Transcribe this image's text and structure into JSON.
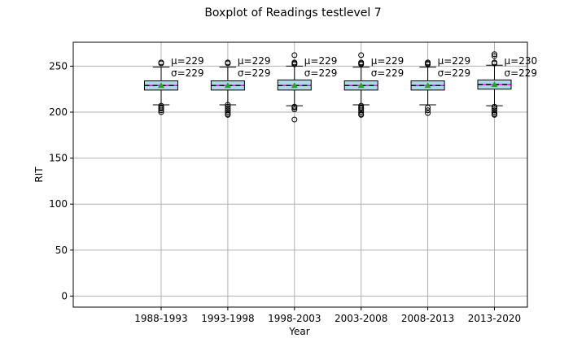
{
  "chart_data": {
    "type": "boxplot",
    "title": "Boxplot of Readings testlevel 7",
    "xlabel": "Year",
    "ylabel": "RIT",
    "ylim": [
      -12,
      276
    ],
    "yticks": [
      0,
      50,
      100,
      150,
      200,
      250
    ],
    "grid": true,
    "categories": [
      "1988-1993",
      "1993-1998",
      "1998-2003",
      "2003-2008",
      "2008-2013",
      "2013-2020"
    ],
    "boxes": [
      {
        "q1": 224,
        "median": 229,
        "q3": 234,
        "whisker_low": 208,
        "whisker_high": 249,
        "mean": 229,
        "outliers": [
          254,
          253,
          207,
          205,
          204,
          202,
          200
        ]
      },
      {
        "q1": 224,
        "median": 229,
        "q3": 234,
        "whisker_low": 208,
        "whisker_high": 249,
        "mean": 229,
        "outliers": [
          254,
          253,
          208,
          206,
          204,
          202,
          200,
          198,
          197
        ]
      },
      {
        "q1": 224,
        "median": 229,
        "q3": 235,
        "whisker_low": 207,
        "whisker_high": 250,
        "mean": 229,
        "outliers": [
          262,
          254,
          253,
          252,
          206,
          205,
          203,
          192
        ]
      },
      {
        "q1": 224,
        "median": 229,
        "q3": 234,
        "whisker_low": 208,
        "whisker_high": 249,
        "mean": 229,
        "outliers": [
          262,
          254,
          253,
          252,
          207,
          205,
          204,
          202,
          200,
          198,
          197
        ]
      },
      {
        "q1": 224,
        "median": 229,
        "q3": 234,
        "whisker_low": 208,
        "whisker_high": 249,
        "mean": 229,
        "outliers": [
          254,
          253,
          252,
          205,
          202,
          199
        ]
      },
      {
        "q1": 225,
        "median": 230,
        "q3": 235,
        "whisker_low": 207,
        "whisker_high": 251,
        "mean": 230,
        "outliers": [
          263,
          261,
          254,
          253,
          206,
          204,
          202,
          200,
          198,
          197
        ]
      }
    ],
    "annotations": [
      {
        "mu": "μ=229",
        "sigma": "σ=229"
      },
      {
        "mu": "μ=229",
        "sigma": "σ=229"
      },
      {
        "mu": "μ=229",
        "sigma": "σ=229"
      },
      {
        "mu": "μ=229",
        "sigma": "σ=229"
      },
      {
        "mu": "μ=229",
        "sigma": "σ=229"
      },
      {
        "mu": "μ=230",
        "sigma": "σ=229"
      }
    ],
    "colors": {
      "box_fill": "#add8e6",
      "median": "#ff00ff",
      "mean_marker": "#2ca02c",
      "grid": "#b0b0b0"
    }
  }
}
